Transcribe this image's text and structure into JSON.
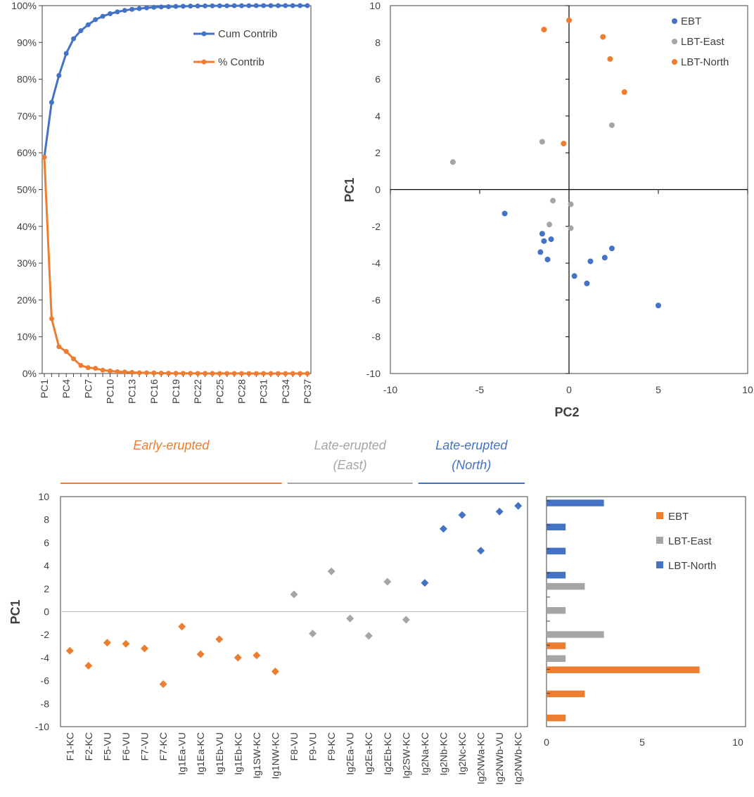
{
  "colors": {
    "orange": "#ED7D31",
    "blue": "#4472C4",
    "gray": "#A5A5A5",
    "axis": "#404040",
    "zero": "#BFBFBF"
  },
  "chart_data": [
    {
      "id": "scree",
      "type": "line",
      "title": "",
      "categories": [
        "PC1",
        "PC2",
        "PC3",
        "PC4",
        "PC5",
        "PC6",
        "PC7",
        "PC8",
        "PC9",
        "PC10",
        "PC11",
        "PC12",
        "PC13",
        "PC14",
        "PC15",
        "PC16",
        "PC17",
        "PC18",
        "PC19",
        "PC20",
        "PC21",
        "PC22",
        "PC23",
        "PC24",
        "PC25",
        "PC26",
        "PC27",
        "PC28",
        "PC29",
        "PC30",
        "PC31",
        "PC32",
        "PC33",
        "PC34",
        "PC35",
        "PC36",
        "PC37"
      ],
      "tick_labels": [
        "PC1",
        "PC4",
        "PC7",
        "PC10",
        "PC13",
        "PC16",
        "PC19",
        "PC22",
        "PC25",
        "PC28",
        "PC31",
        "PC34",
        "PC37"
      ],
      "y_tick_labels": [
        "0%",
        "10%",
        "20%",
        "30%",
        "40%",
        "50%",
        "60%",
        "70%",
        "80%",
        "90%",
        "100%"
      ],
      "ylim": [
        0,
        100
      ],
      "series": [
        {
          "name": "Cum Contrib",
          "color": "#4472C4",
          "values": [
            58.8,
            73.7,
            81,
            87,
            91,
            93.2,
            94.8,
            96.2,
            97.1,
            97.8,
            98.3,
            98.7,
            99,
            99.2,
            99.4,
            99.55,
            99.65,
            99.72,
            99.78,
            99.83,
            99.87,
            99.9,
            99.92,
            99.94,
            99.95,
            99.96,
            99.97,
            99.98,
            99.985,
            99.99,
            99.993,
            99.995,
            99.997,
            99.998,
            99.999,
            100,
            100
          ]
        },
        {
          "name": "% Contrib",
          "color": "#ED7D31",
          "values": [
            58.8,
            14.9,
            7.3,
            6,
            4,
            2.2,
            1.6,
            1.4,
            0.9,
            0.7,
            0.5,
            0.4,
            0.3,
            0.2,
            0.2,
            0.15,
            0.1,
            0.07,
            0.06,
            0.05,
            0.04,
            0.03,
            0.02,
            0.02,
            0.01,
            0.01,
            0.01,
            0.01,
            0.005,
            0.005,
            0.003,
            0.002,
            0.002,
            0.001,
            0.001,
            0.001,
            0
          ]
        }
      ]
    },
    {
      "id": "score_plot",
      "type": "scatter",
      "xlabel": "PC2",
      "ylabel": "PC1",
      "xlim": [
        -10,
        10
      ],
      "ylim": [
        -10,
        10
      ],
      "x_tick_labels": [
        "-10",
        "-5",
        "0",
        "5",
        "10"
      ],
      "y_tick_labels": [
        "10",
        "8",
        "6",
        "4",
        "2",
        "0",
        "-2",
        "-4",
        "-6",
        "-8",
        "-10"
      ],
      "series": [
        {
          "name": "EBT",
          "color": "#4472C4",
          "points": [
            [
              -3.6,
              -1.3
            ],
            [
              -1.5,
              -2.4
            ],
            [
              -1.4,
              -2.8
            ],
            [
              -1.0,
              -2.7
            ],
            [
              -1.6,
              -3.4
            ],
            [
              -1.2,
              -3.8
            ],
            [
              0.3,
              -4.7
            ],
            [
              1.0,
              -5.1
            ],
            [
              1.2,
              -3.9
            ],
            [
              2.0,
              -3.7
            ],
            [
              2.4,
              -3.2
            ],
            [
              5.0,
              -6.3
            ]
          ]
        },
        {
          "name": "LBT-East",
          "color": "#A5A5A5",
          "points": [
            [
              -6.5,
              1.5
            ],
            [
              -1.5,
              2.6
            ],
            [
              -0.9,
              -0.6
            ],
            [
              -1.1,
              -1.9
            ],
            [
              0.1,
              -0.8
            ],
            [
              0.1,
              -2.1
            ],
            [
              2.4,
              3.5
            ]
          ]
        },
        {
          "name": "LBT-North",
          "color": "#ED7D31",
          "points": [
            [
              -1.4,
              8.7
            ],
            [
              0.0,
              9.2
            ],
            [
              1.9,
              8.3
            ],
            [
              2.3,
              7.1
            ],
            [
              3.1,
              5.3
            ],
            [
              -0.3,
              2.5
            ]
          ]
        }
      ]
    },
    {
      "id": "sample_plot",
      "type": "scatter",
      "ylabel": "PC1",
      "ylim": [
        -10,
        10
      ],
      "y_tick_labels": [
        "10",
        "8",
        "6",
        "4",
        "2",
        "0",
        "-2",
        "-4",
        "-6",
        "-8",
        "-10"
      ],
      "categories": [
        "F1-KC",
        "F2-KC",
        "F5-VU",
        "F6-VU",
        "F7-VU",
        "F7-KC",
        "Ig1Ea-VU",
        "Ig1Ea-KC",
        "Ig1Eb-VU",
        "Ig1Eb-KC",
        "Ig1SW-KC",
        "Ig1NW-KC",
        "F8-VU",
        "F9-VU",
        "F9-KC",
        "Ig2Ea-VU",
        "Ig2Ea-KC",
        "Ig2Eb-KC",
        "Ig2SW-KC",
        "Ig2Na-KC",
        "Ig2Nb-KC",
        "Ig2Nc-KC",
        "Ig2NWa-KC",
        "Ig2NWb-VU",
        "Ig2NWb-KC"
      ],
      "values": [
        -3.4,
        -4.7,
        -2.7,
        -2.8,
        -3.2,
        -6.3,
        -1.3,
        -3.7,
        -2.4,
        -4.0,
        -3.8,
        -5.2,
        1.5,
        -1.9,
        3.5,
        -0.6,
        -2.1,
        2.6,
        -0.7,
        2.5,
        7.2,
        8.4,
        5.3,
        8.7,
        9.2
      ],
      "colors": [
        "#ED7D31",
        "#ED7D31",
        "#ED7D31",
        "#ED7D31",
        "#ED7D31",
        "#ED7D31",
        "#ED7D31",
        "#ED7D31",
        "#ED7D31",
        "#ED7D31",
        "#ED7D31",
        "#ED7D31",
        "#A5A5A5",
        "#A5A5A5",
        "#A5A5A5",
        "#A5A5A5",
        "#A5A5A5",
        "#A5A5A5",
        "#A5A5A5",
        "#4472C4",
        "#4472C4",
        "#4472C4",
        "#4472C4",
        "#4472C4",
        "#4472C4"
      ],
      "groups": [
        {
          "label_line1": "Early-erupted",
          "label_line2": "",
          "color": "#ED7D31",
          "start": 0,
          "end": 11
        },
        {
          "label_line1": "Late-erupted",
          "label_line2": "(East)",
          "color": "#A5A5A5",
          "start": 12,
          "end": 18
        },
        {
          "label_line1": "Late-erupted",
          "label_line2": "(North)",
          "color": "#4472C4",
          "start": 19,
          "end": 24
        }
      ]
    },
    {
      "id": "histogram",
      "type": "bar",
      "orientation": "horizontal",
      "xlim": [
        0,
        10
      ],
      "x_tick_labels": [
        "0",
        "5",
        "10"
      ],
      "bins_pc1": [
        9,
        7,
        5,
        3,
        1,
        -1,
        -3,
        -5,
        -7
      ],
      "series": [
        {
          "name": "EBT",
          "color": "#ED7D31",
          "values": [
            0,
            0,
            0,
            0,
            0,
            1,
            8,
            2,
            1
          ]
        },
        {
          "name": "LBT-East",
          "color": "#A5A5A5",
          "values": [
            0,
            0,
            0,
            2,
            1,
            3,
            1,
            0,
            0
          ]
        },
        {
          "name": "LBT-North",
          "color": "#4472C4",
          "values": [
            3,
            1,
            1,
            1,
            0,
            0,
            0,
            0,
            0
          ]
        }
      ]
    }
  ]
}
